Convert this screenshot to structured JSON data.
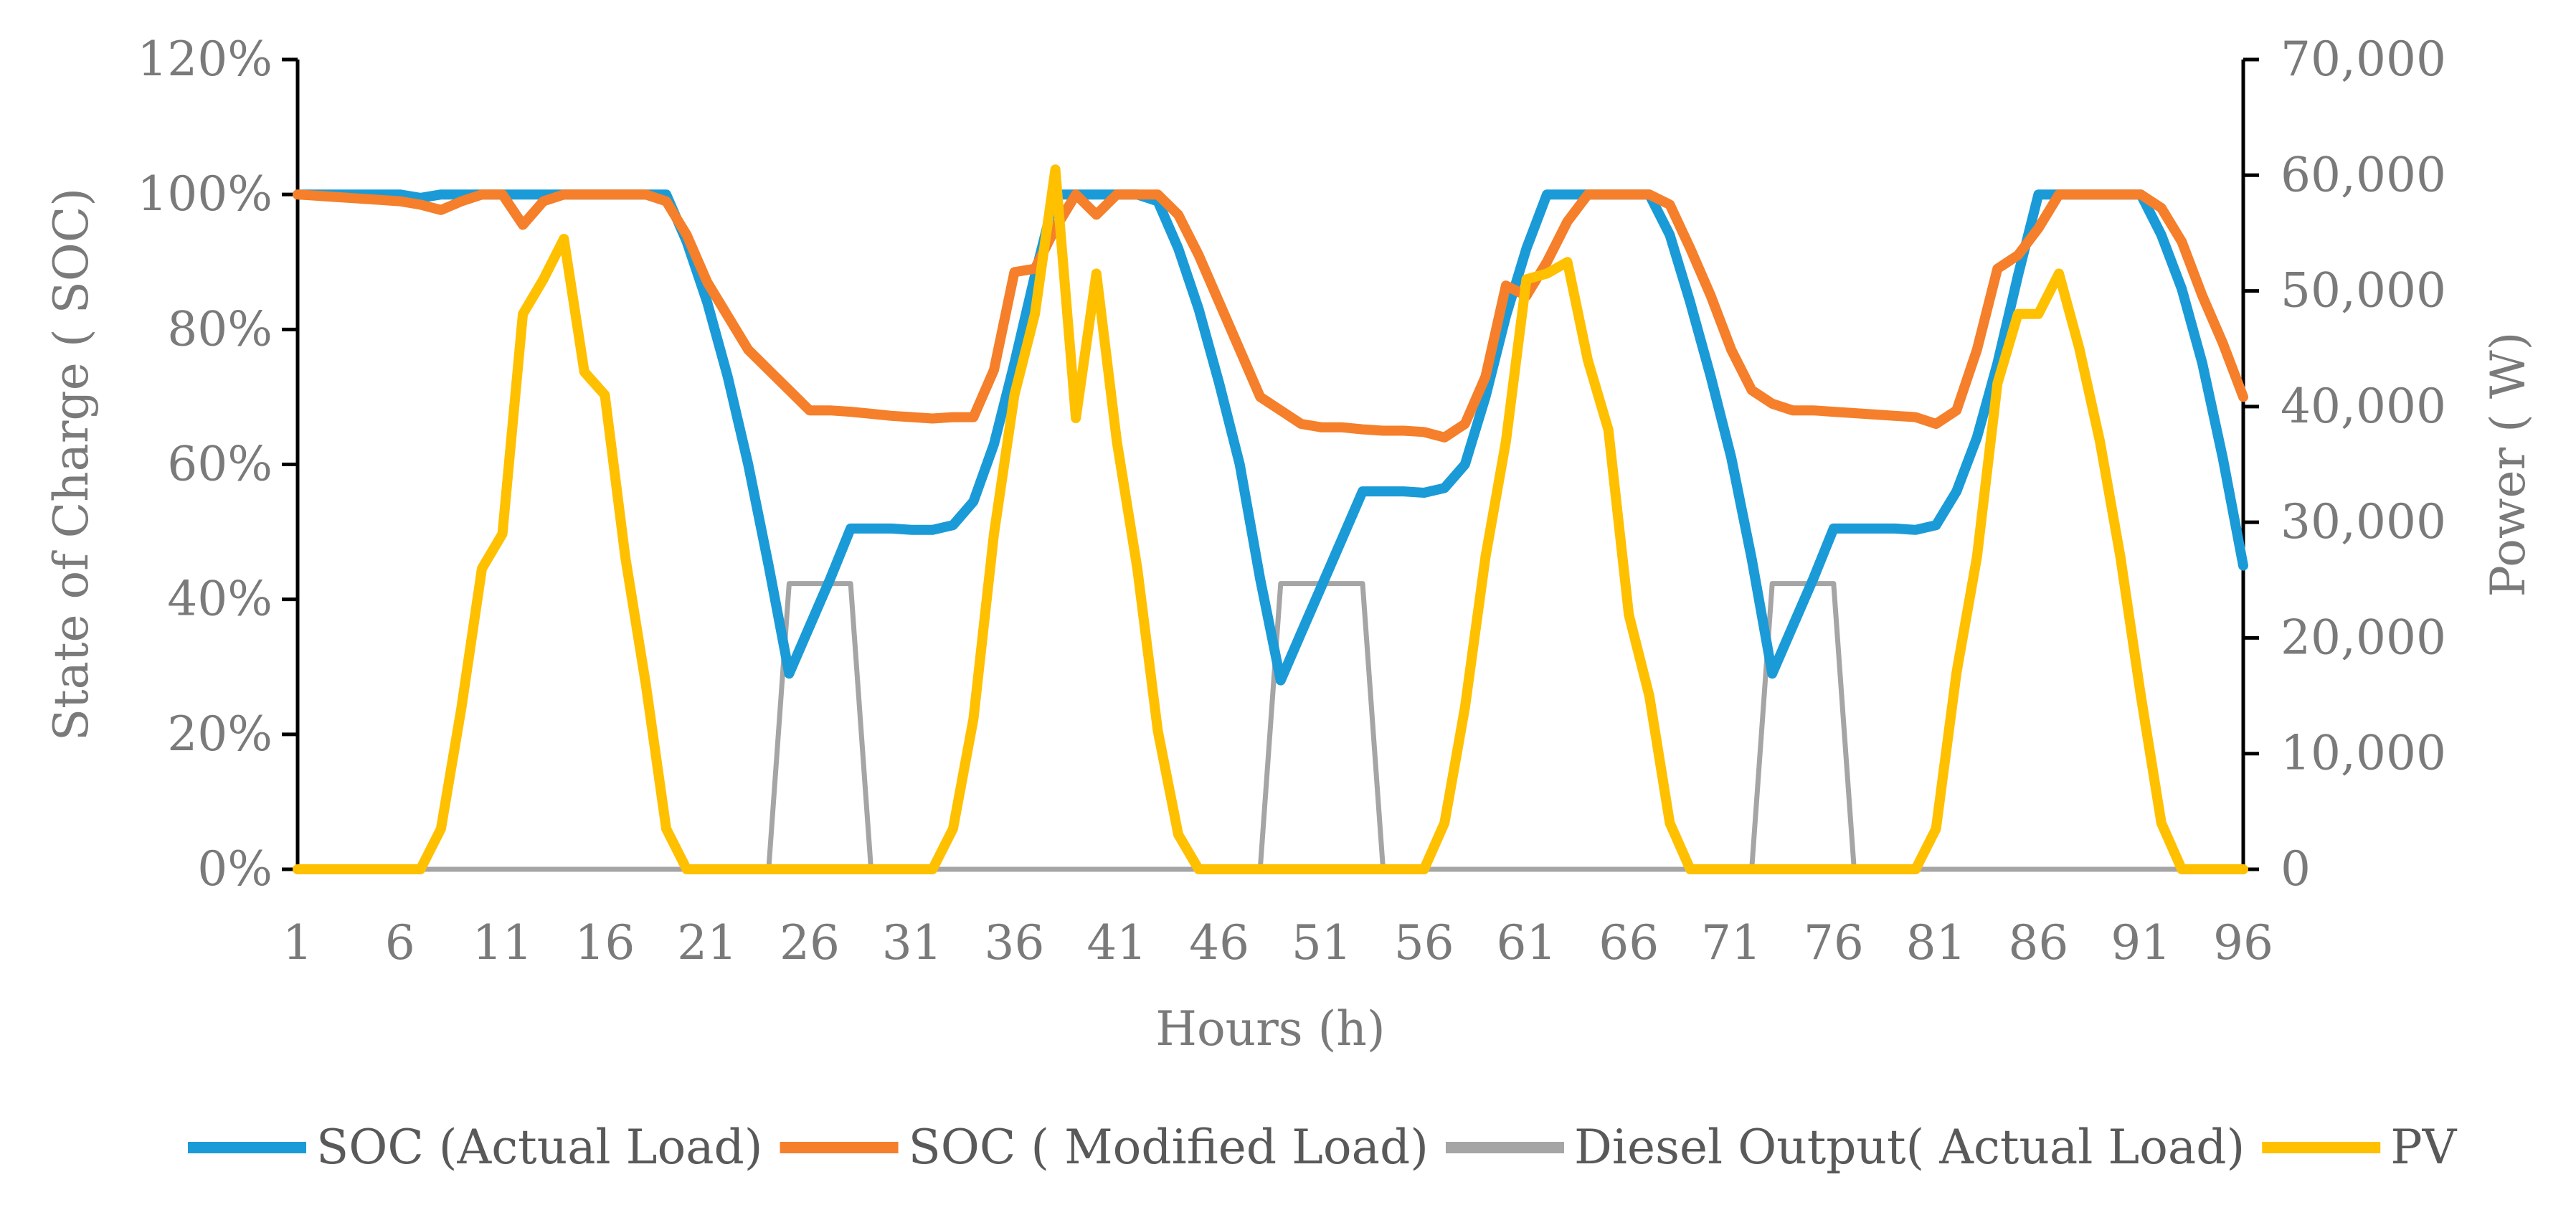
{
  "chart_data": {
    "type": "line",
    "title": "",
    "xlabel": "Hours (h)",
    "ylabel": "State of  Charge ( SOC)",
    "y2label": "Power ( W)",
    "ylim": [
      0,
      1.2
    ],
    "y2lim": [
      0,
      70000
    ],
    "y_ticks": [
      "0%",
      "20%",
      "40%",
      "60%",
      "80%",
      "100%",
      "120%"
    ],
    "y2_ticks": [
      "0",
      "10,000",
      "20,000",
      "30,000",
      "40,000",
      "50,000",
      "60,000",
      "70,000"
    ],
    "x_ticks": [
      "1",
      "6",
      "11",
      "16",
      "21",
      "26",
      "31",
      "36",
      "41",
      "46",
      "51",
      "56",
      "61",
      "66",
      "71",
      "76",
      "81",
      "86",
      "91",
      "96"
    ],
    "x": [
      1,
      2,
      3,
      4,
      5,
      6,
      7,
      8,
      9,
      10,
      11,
      12,
      13,
      14,
      15,
      16,
      17,
      18,
      19,
      20,
      21,
      22,
      23,
      24,
      25,
      26,
      27,
      28,
      29,
      30,
      31,
      32,
      33,
      34,
      35,
      36,
      37,
      38,
      39,
      40,
      41,
      42,
      43,
      44,
      45,
      46,
      47,
      48,
      49,
      50,
      51,
      52,
      53,
      54,
      55,
      56,
      57,
      58,
      59,
      60,
      61,
      62,
      63,
      64,
      65,
      66,
      67,
      68,
      69,
      70,
      71,
      72,
      73,
      74,
      75,
      76,
      77,
      78,
      79,
      80,
      81,
      82,
      83,
      84,
      85,
      86,
      87,
      88,
      89,
      90,
      91,
      92,
      93,
      94,
      95,
      96
    ],
    "legend_position": "bottom",
    "grid": false,
    "series": [
      {
        "name": "SOC (Actual Load)",
        "axis": "left",
        "color": "#1a9bd7",
        "values": [
          1.0,
          1.0,
          1.0,
          1.0,
          1.0,
          1.0,
          0.995,
          1.0,
          1.0,
          1.0,
          1.0,
          1.0,
          1.0,
          1.0,
          1.0,
          1.0,
          1.0,
          1.0,
          1.0,
          0.93,
          0.84,
          0.73,
          0.6,
          0.45,
          0.29,
          0.36,
          0.43,
          0.505,
          0.505,
          0.505,
          0.503,
          0.503,
          0.51,
          0.545,
          0.63,
          0.75,
          0.88,
          1.0,
          1.0,
          1.0,
          1.0,
          1.0,
          0.99,
          0.92,
          0.83,
          0.72,
          0.6,
          0.43,
          0.28,
          0.35,
          0.42,
          0.49,
          0.56,
          0.56,
          0.56,
          0.558,
          0.565,
          0.6,
          0.7,
          0.82,
          0.92,
          1.0,
          1.0,
          1.0,
          1.0,
          1.0,
          1.0,
          0.94,
          0.84,
          0.73,
          0.61,
          0.46,
          0.29,
          0.36,
          0.43,
          0.505,
          0.505,
          0.505,
          0.505,
          0.503,
          0.51,
          0.56,
          0.64,
          0.75,
          0.88,
          1.0,
          1.0,
          1.0,
          1.0,
          1.0,
          1.0,
          0.94,
          0.86,
          0.75,
          0.61,
          0.45
        ]
      },
      {
        "name": "SOC ( Modified Load)",
        "axis": "left",
        "color": "#f57f2a",
        "values": [
          1.0,
          0.998,
          0.996,
          0.994,
          0.992,
          0.99,
          0.985,
          0.977,
          0.99,
          1.0,
          1.0,
          0.955,
          0.99,
          1.0,
          1.0,
          1.0,
          1.0,
          1.0,
          0.99,
          0.94,
          0.87,
          0.82,
          0.77,
          0.74,
          0.71,
          0.68,
          0.68,
          0.678,
          0.675,
          0.672,
          0.67,
          0.668,
          0.67,
          0.67,
          0.74,
          0.885,
          0.89,
          0.95,
          1.0,
          0.97,
          1.0,
          1.0,
          1.0,
          0.97,
          0.91,
          0.84,
          0.77,
          0.7,
          0.68,
          0.66,
          0.655,
          0.655,
          0.652,
          0.65,
          0.65,
          0.648,
          0.64,
          0.66,
          0.73,
          0.865,
          0.85,
          0.9,
          0.96,
          1.0,
          1.0,
          1.0,
          1.0,
          0.985,
          0.92,
          0.85,
          0.77,
          0.71,
          0.69,
          0.68,
          0.68,
          0.678,
          0.676,
          0.674,
          0.672,
          0.67,
          0.66,
          0.68,
          0.77,
          0.89,
          0.91,
          0.95,
          1.0,
          1.0,
          1.0,
          1.0,
          1.0,
          0.98,
          0.93,
          0.85,
          0.78,
          0.7
        ]
      },
      {
        "name": "Diesel  Output( Actual Load)",
        "axis": "right",
        "color": "#a5a5a5",
        "values": [
          0,
          0,
          0,
          0,
          0,
          0,
          0,
          0,
          0,
          0,
          0,
          0,
          0,
          0,
          0,
          0,
          0,
          0,
          0,
          0,
          0,
          0,
          0,
          0,
          24700,
          24700,
          24700,
          24700,
          0,
          0,
          0,
          0,
          0,
          0,
          0,
          0,
          0,
          0,
          0,
          0,
          0,
          0,
          0,
          0,
          0,
          0,
          0,
          0,
          24700,
          24700,
          24700,
          24700,
          24700,
          0,
          0,
          0,
          0,
          0,
          0,
          0,
          0,
          0,
          0,
          0,
          0,
          0,
          0,
          0,
          0,
          0,
          0,
          0,
          24700,
          24700,
          24700,
          24700,
          0,
          0,
          0,
          0,
          0,
          0,
          0,
          0,
          0,
          0,
          0,
          0,
          0,
          0,
          0,
          0,
          0,
          0,
          0,
          0
        ]
      },
      {
        "name": "PV",
        "axis": "right",
        "color": "#ffc000",
        "values": [
          0,
          0,
          0,
          0,
          0,
          0,
          0,
          3500,
          14000,
          26000,
          29000,
          48000,
          51000,
          54500,
          43000,
          41000,
          27000,
          16000,
          3500,
          0,
          0,
          0,
          0,
          0,
          0,
          0,
          0,
          0,
          0,
          0,
          0,
          0,
          3500,
          13000,
          29000,
          41000,
          48000,
          60500,
          39000,
          51500,
          37000,
          26000,
          12000,
          3000,
          0,
          0,
          0,
          0,
          0,
          0,
          0,
          0,
          0,
          0,
          0,
          0,
          4000,
          14000,
          27000,
          37000,
          51000,
          51500,
          52500,
          44000,
          38000,
          22000,
          15000,
          4000,
          0,
          0,
          0,
          0,
          0,
          0,
          0,
          0,
          0,
          0,
          0,
          0,
          3500,
          17000,
          27000,
          42000,
          48000,
          48000,
          51500,
          45000,
          37000,
          27000,
          15000,
          4000,
          0,
          0,
          0,
          0
        ]
      }
    ]
  }
}
